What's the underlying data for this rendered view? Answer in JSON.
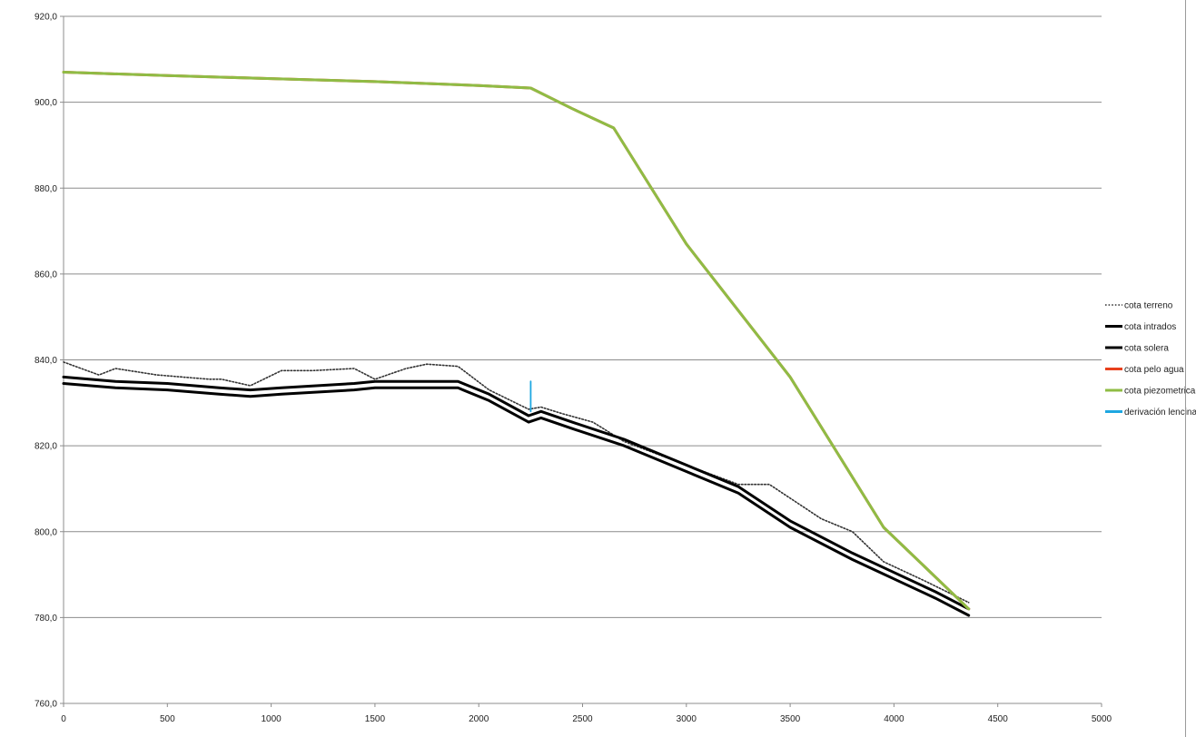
{
  "chart_data": {
    "type": "line",
    "title": "",
    "xlabel": "",
    "ylabel": "",
    "xlim": [
      0,
      5000
    ],
    "ylim": [
      760,
      920
    ],
    "x_ticks": [
      0,
      500,
      1000,
      1500,
      2000,
      2500,
      3000,
      3500,
      4000,
      4500,
      5000
    ],
    "x_tick_labels": [
      "0",
      "500",
      "1000",
      "1500",
      "2000",
      "2500",
      "3000",
      "3500",
      "4000",
      "4500",
      "5000"
    ],
    "y_ticks": [
      760,
      780,
      800,
      820,
      840,
      860,
      880,
      900,
      920
    ],
    "y_tick_labels": [
      "760,0",
      "780,0",
      "800,0",
      "820,0",
      "840,0",
      "860,0",
      "880,0",
      "900,0",
      "920,0"
    ],
    "grid": "horizontal",
    "legend_position": "right",
    "series": [
      {
        "name": "cota terreno",
        "color": "#333333",
        "style": "dotted",
        "x": [
          0,
          170,
          250,
          450,
          700,
          760,
          900,
          1050,
          1200,
          1400,
          1500,
          1650,
          1750,
          1900,
          2050,
          2240,
          2300,
          2400,
          2550,
          2700,
          3000,
          3250,
          3400,
          3650,
          3800,
          3950,
          4150,
          4360
        ],
        "y": [
          839.5,
          836.5,
          838,
          836.5,
          835.5,
          835.5,
          834,
          837.5,
          837.5,
          838,
          835.5,
          838,
          839,
          838.5,
          833,
          828.5,
          829,
          827.5,
          825.5,
          821,
          815.5,
          811,
          811,
          803,
          800,
          793,
          788.5,
          783.5
        ]
      },
      {
        "name": "cota intrados",
        "color": "#000000",
        "style": "solid",
        "x": [
          0,
          250,
          500,
          750,
          900,
          1050,
          1400,
          1500,
          1750,
          1900,
          2050,
          2240,
          2300,
          2450,
          2700,
          3000,
          3250,
          3500,
          3800,
          4000,
          4200,
          4360
        ],
        "y": [
          836,
          835,
          834.5,
          833.5,
          833,
          833.5,
          834.5,
          835,
          835,
          835,
          832,
          827,
          828,
          825.5,
          821.5,
          815.5,
          810.5,
          802.5,
          795,
          790.5,
          786,
          782
        ]
      },
      {
        "name": "cota solera",
        "color": "#000000",
        "style": "solid",
        "x": [
          0,
          250,
          500,
          750,
          900,
          1050,
          1400,
          1500,
          1750,
          1900,
          2050,
          2240,
          2300,
          2450,
          2700,
          3000,
          3250,
          3500,
          3800,
          4000,
          4200,
          4360
        ],
        "y": [
          834.5,
          833.5,
          833,
          832,
          831.5,
          832,
          833,
          833.5,
          833.5,
          833.5,
          830.5,
          825.5,
          826.5,
          824,
          820,
          814,
          809,
          801,
          793.5,
          789,
          784.5,
          780.5
        ]
      },
      {
        "name": "cota pelo agua",
        "color": "#e8401c",
        "style": "solid",
        "x": [
          0,
          180,
          500,
          1000,
          1500,
          2000,
          2250,
          2450,
          2650,
          3000,
          3500,
          3950,
          4360
        ],
        "y": [
          907,
          906.7,
          906.2,
          905.5,
          904.8,
          903.9,
          903.3,
          898.5,
          894,
          867,
          836,
          801,
          782
        ]
      },
      {
        "name": "cota piezometrica",
        "color": "#8fbc45",
        "style": "solid",
        "x": [
          0,
          180,
          500,
          1000,
          1500,
          2000,
          2250,
          2450,
          2650,
          3000,
          3500,
          3950,
          4360
        ],
        "y": [
          907,
          906.7,
          906.2,
          905.5,
          904.8,
          903.9,
          903.3,
          898.5,
          894,
          867,
          836,
          801,
          782
        ]
      },
      {
        "name": "derivación lencinas",
        "color": "#1ea7e1",
        "style": "solid",
        "x": [
          2250,
          2250
        ],
        "y": [
          835,
          828
        ]
      }
    ]
  }
}
